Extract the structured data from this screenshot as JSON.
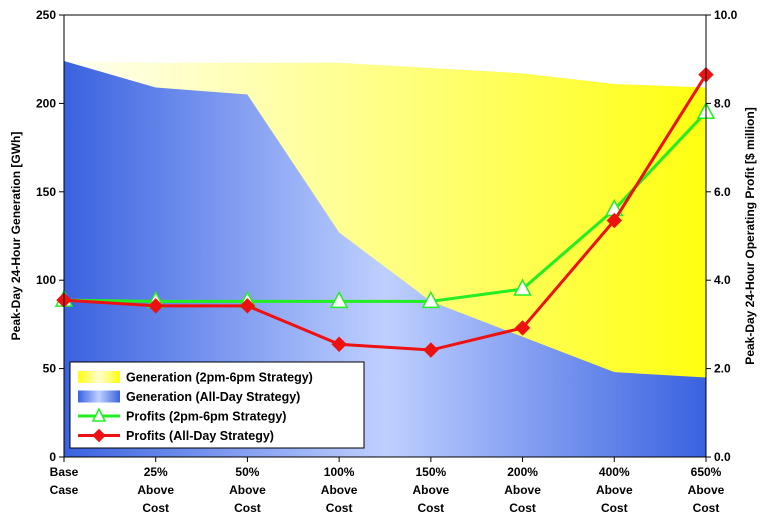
{
  "chart_data": {
    "type": "area",
    "categories": [
      [
        "Base",
        "Case"
      ],
      [
        "25%",
        "Above",
        "Cost"
      ],
      [
        "50%",
        "Above",
        "Cost"
      ],
      [
        "100%",
        "Above",
        "Cost"
      ],
      [
        "150%",
        "Above",
        "Cost"
      ],
      [
        "200%",
        "Above",
        "Cost"
      ],
      [
        "400%",
        "Above",
        "Cost"
      ],
      [
        "650%",
        "Above",
        "Cost"
      ]
    ],
    "y_left": {
      "label": "Peak-Day 24-Hour Generation [GWh]",
      "lim": [
        0,
        250
      ],
      "ticks": [
        0,
        50,
        100,
        150,
        200,
        250
      ],
      "tick_labels": [
        "0",
        "50",
        "100",
        "150",
        "200",
        "250"
      ]
    },
    "y_right": {
      "label": "Peak-Day 24-Hour Operating Profit [$ million]",
      "lim": [
        0,
        10
      ],
      "ticks": [
        0,
        2,
        4,
        6,
        8,
        10
      ],
      "tick_labels": [
        "0.0",
        "2.0",
        "4.0",
        "6.0",
        "8.0",
        "10.0"
      ]
    },
    "series": [
      {
        "name": "Generation (2pm-6pm Strategy)",
        "kind": "area",
        "axis": "left",
        "color": "#ffff1a",
        "values": [
          224,
          223,
          223,
          223,
          220,
          217,
          211,
          209
        ]
      },
      {
        "name": "Generation (All-Day Strategy)",
        "kind": "area",
        "axis": "left",
        "color": "#3a62e0",
        "values": [
          224,
          209,
          205,
          127,
          88,
          68,
          48,
          45
        ]
      },
      {
        "name": "Profits (2pm-6pm Strategy)",
        "kind": "line",
        "axis": "right",
        "color": "#22ee22",
        "marker": "triangle",
        "values": [
          3.55,
          3.52,
          3.52,
          3.52,
          3.52,
          3.8,
          5.6,
          7.8
        ]
      },
      {
        "name": "Profits (All-Day Strategy)",
        "kind": "line",
        "axis": "right",
        "color": "#ee1111",
        "marker": "diamond",
        "values": [
          3.55,
          3.42,
          3.42,
          2.55,
          2.42,
          2.92,
          5.35,
          8.65
        ]
      }
    ],
    "grid": false,
    "legend_position": "bottom-left"
  }
}
